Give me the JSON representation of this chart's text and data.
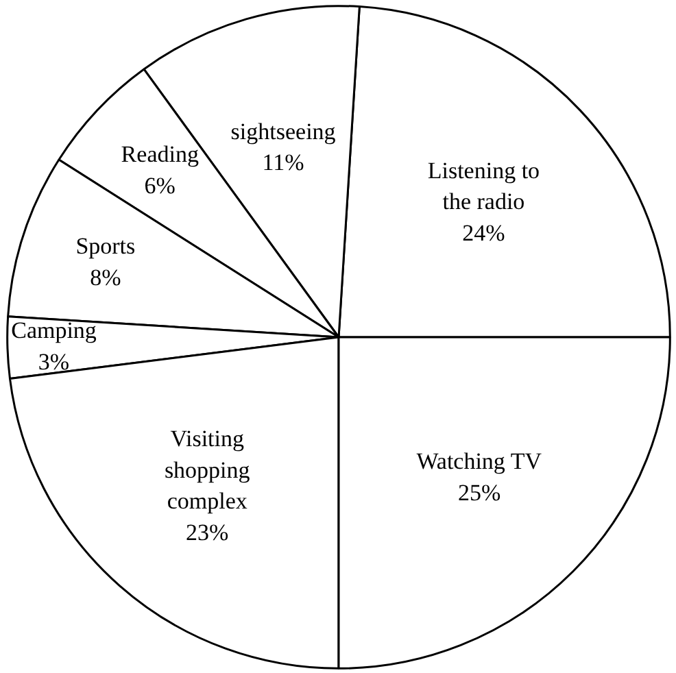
{
  "chart_data": {
    "type": "pie",
    "categories": [
      "Listening to\nthe radio",
      "sightseeing",
      "Reading",
      "Sports",
      "Camping",
      "Visiting\nshopping\ncomplex",
      "Watching TV"
    ],
    "values": [
      24,
      11,
      6,
      8,
      3,
      23,
      25
    ],
    "value_labels": [
      "24%",
      "11%",
      "6%",
      "8%",
      "3%",
      "23%",
      "25%"
    ],
    "colors": [
      "#ffffff",
      "#ffffff",
      "#ffffff",
      "#ffffff",
      "#ffffff",
      "#ffffff",
      "#ffffff"
    ]
  }
}
